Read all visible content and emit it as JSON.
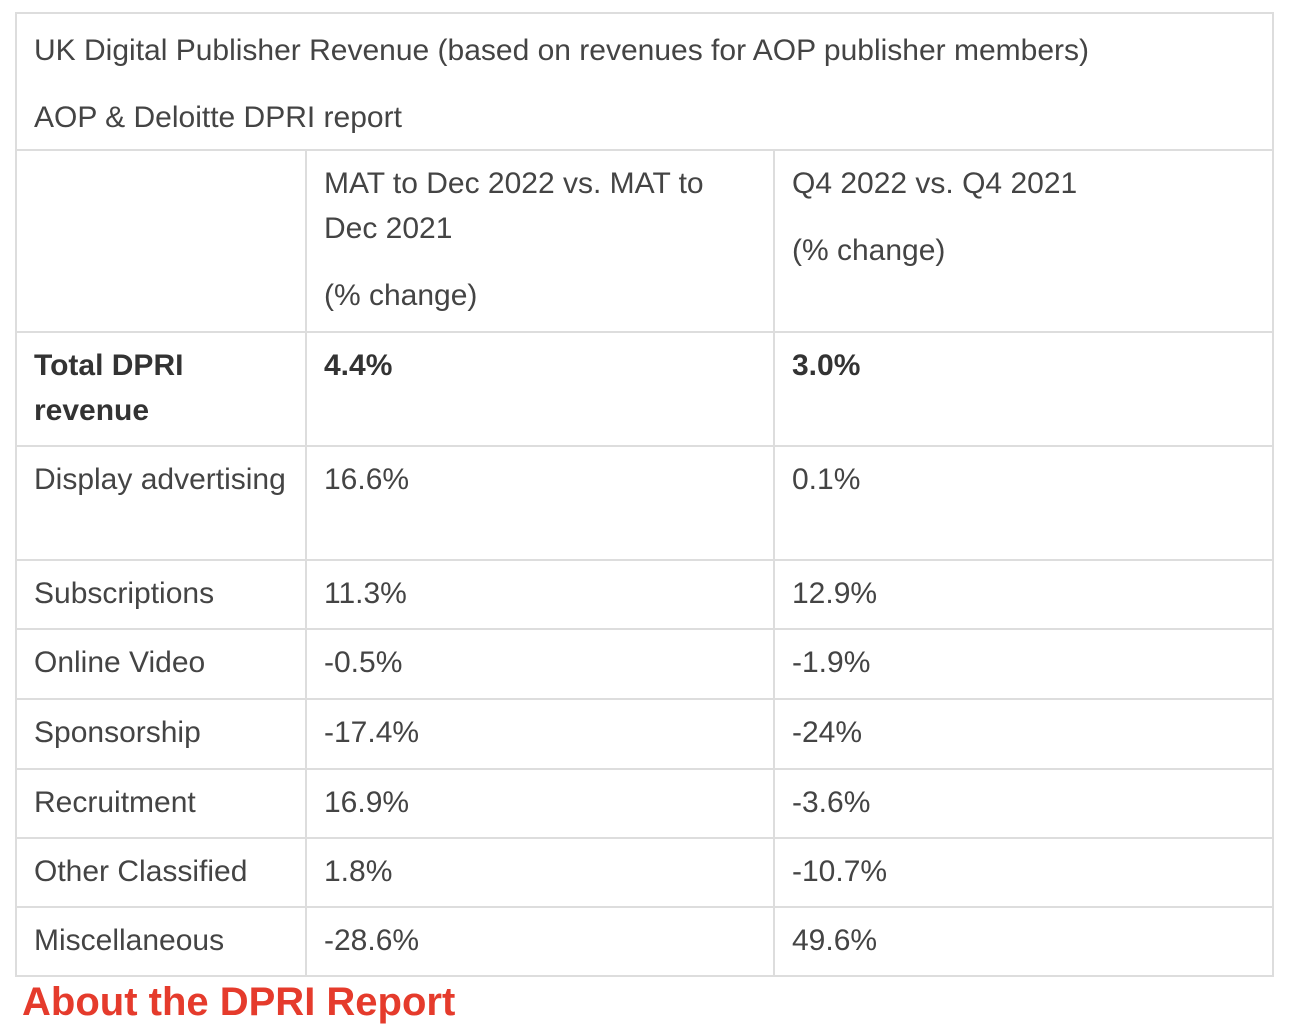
{
  "caption": {
    "title": "UK Digital Publisher Revenue (based on revenues for AOP publisher members)",
    "source": "AOP & Deloitte DPRI report"
  },
  "header": {
    "col1": {
      "line1": "MAT to Dec 2022 vs. MAT to Dec 2021",
      "note": "(% change)"
    },
    "col2": {
      "line1": "Q4 2022 vs. Q4 2021",
      "note": "(% change)"
    }
  },
  "rows": [
    {
      "label": "Total DPRI revenue",
      "mat": "4.4%",
      "q4": "3.0%"
    },
    {
      "label": "Display advertising",
      "mat": "16.6%",
      "q4": "0.1%"
    },
    {
      "label": "Subscriptions",
      "mat": "11.3%",
      "q4": "12.9%"
    },
    {
      "label": "Online Video",
      "mat": "-0.5%",
      "q4": "-1.9%"
    },
    {
      "label": "Sponsorship",
      "mat": "-17.4%",
      "q4": "-24%"
    },
    {
      "label": "Recruitment",
      "mat": "16.9%",
      "q4": "-3.6%"
    },
    {
      "label": "Other Classified",
      "mat": "1.8%",
      "q4": "-10.7%"
    },
    {
      "label": "Miscellaneous",
      "mat": "-28.6%",
      "q4": "49.6%"
    }
  ],
  "footer": {
    "heading": "About the DPRI Report"
  },
  "colors": {
    "text": "#444444",
    "border": "#dddddd",
    "accent": "#e53b2c"
  }
}
